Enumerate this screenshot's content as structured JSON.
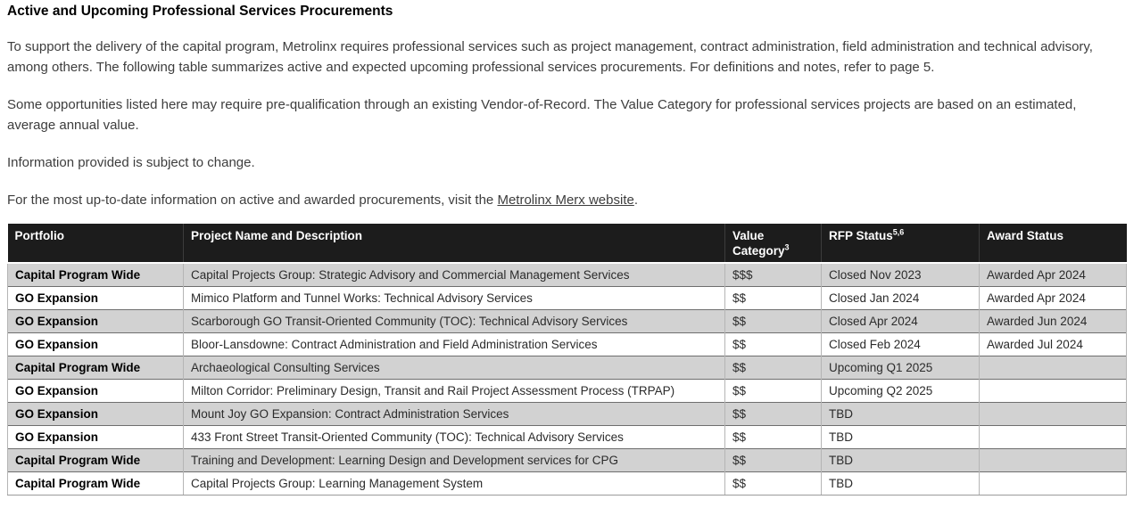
{
  "page": {
    "title": "Active and Upcoming Professional Services Procurements",
    "paragraphs": {
      "intro": "To support the delivery of the capital program, Metrolinx requires professional services such as project management, contract administration, field administration and technical advisory, among others. The following table summarizes active and expected upcoming professional services procurements. For definitions and notes, refer to page 5.",
      "prequalification": "Some opportunities listed here may require pre-qualification through an existing Vendor-of-Record. The Value Category for professional services projects are based on an estimated, average annual value.",
      "subject_to_change": "Information provided is subject to change.",
      "merx_prefix": "For the most up-to-date information on active and awarded procurements, visit the ",
      "merx_link": "Metrolinx Merx website",
      "merx_suffix": "."
    }
  },
  "table": {
    "columns": [
      {
        "label": "Portfolio",
        "sup": ""
      },
      {
        "label": "Project Name and Description",
        "sup": ""
      },
      {
        "label": "Value Category",
        "sup": "3"
      },
      {
        "label": "RFP Status",
        "sup": "5,6"
      },
      {
        "label": "Award Status",
        "sup": ""
      }
    ],
    "rows": [
      {
        "portfolio": "Capital Program Wide",
        "project": "Capital Projects Group: Strategic Advisory and Commercial Management Services",
        "value": "$$$",
        "rfp": "Closed Nov 2023",
        "award": "Awarded Apr 2024"
      },
      {
        "portfolio": "GO Expansion",
        "project": "Mimico Platform and Tunnel Works: Technical Advisory Services",
        "value": "$$",
        "rfp": "Closed Jan 2024",
        "award": "Awarded Apr 2024"
      },
      {
        "portfolio": "GO Expansion",
        "project": "Scarborough GO Transit-Oriented Community (TOC):  Technical Advisory Services",
        "value": "$$",
        "rfp": "Closed Apr 2024",
        "award": "Awarded Jun 2024"
      },
      {
        "portfolio": "GO Expansion",
        "project": "Bloor-Lansdowne: Contract Administration and Field Administration Services",
        "value": "$$",
        "rfp": "Closed Feb 2024",
        "award": "Awarded Jul 2024"
      },
      {
        "portfolio": "Capital Program Wide",
        "project": "Archaeological Consulting Services",
        "value": "$$",
        "rfp": "Upcoming Q1 2025",
        "award": ""
      },
      {
        "portfolio": "GO Expansion",
        "project": "Milton Corridor: Preliminary Design, Transit and Rail Project Assessment Process (TRPAP)",
        "value": "$$",
        "rfp": "Upcoming Q2 2025",
        "award": ""
      },
      {
        "portfolio": "GO Expansion",
        "project": "Mount Joy GO Expansion: Contract Administration Services",
        "value": "$$",
        "rfp": "TBD",
        "award": ""
      },
      {
        "portfolio": "GO Expansion",
        "project": "433 Front Street Transit-Oriented Community (TOC): Technical Advisory Services",
        "value": "$$",
        "rfp": "TBD",
        "award": ""
      },
      {
        "portfolio": "Capital Program Wide",
        "project": "Training and Development: Learning Design and Development services for CPG",
        "value": "$$",
        "rfp": "TBD",
        "award": ""
      },
      {
        "portfolio": "Capital Program Wide",
        "project": "Capital Projects Group: Learning Management System",
        "value": "$$",
        "rfp": "TBD",
        "award": ""
      }
    ]
  },
  "colors": {
    "header_bg": "#1c1c1c",
    "row_alt_bg": "#d2d2d2"
  }
}
